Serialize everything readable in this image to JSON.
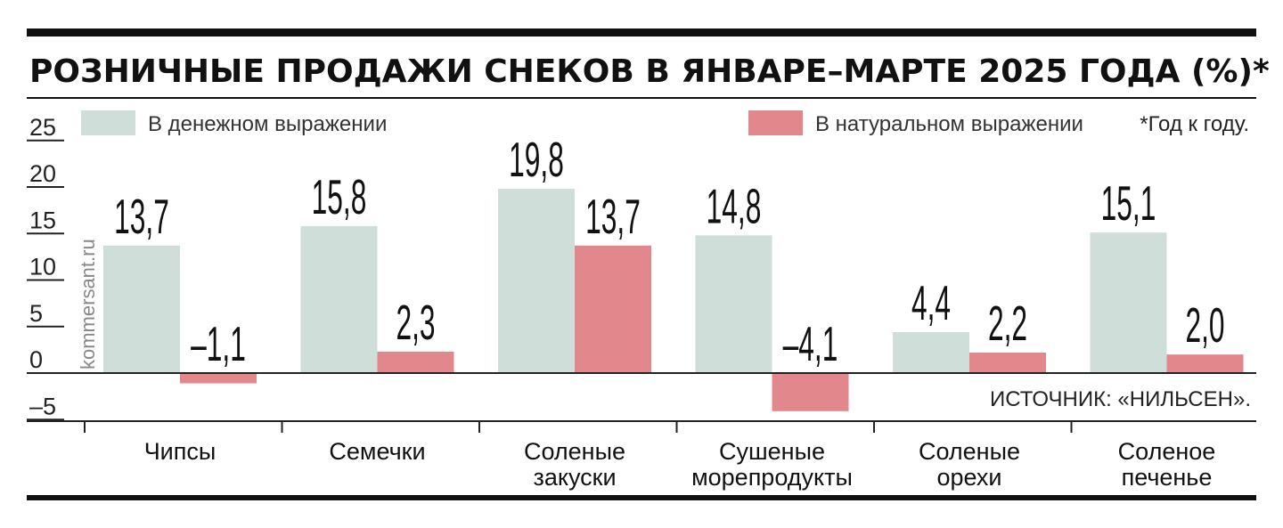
{
  "chart_data": {
    "type": "bar",
    "title": "РОЗНИЧНЫЕ ПРОДАЖИ СНЕКОВ В ЯНВАРЕ–МАРТЕ 2025 ГОДА (%)*",
    "categories": [
      [
        "Чипсы"
      ],
      [
        "Семечки"
      ],
      [
        "Соленые",
        "закуски"
      ],
      [
        "Сушеные",
        "морепродукты"
      ],
      [
        "Соленые",
        "орехи"
      ],
      [
        "Соленое",
        "печенье"
      ]
    ],
    "series": [
      {
        "name": "В денежном выражении",
        "color": "#cfded9",
        "values": [
          13.7,
          15.8,
          19.8,
          14.8,
          4.4,
          15.1
        ],
        "labels": [
          "13,7",
          "15,8",
          "19,8",
          "14,8",
          "4,4",
          "15,1"
        ]
      },
      {
        "name": "В натуральном выражении",
        "color": "#e2888d",
        "values": [
          -1.1,
          2.3,
          13.7,
          -4.1,
          2.2,
          2.0
        ],
        "labels": [
          "–1,1",
          "2,3",
          "13,7",
          "–4,1",
          "2,2",
          "2,0"
        ]
      }
    ],
    "yticks": [
      25,
      20,
      15,
      10,
      5,
      0,
      -5
    ],
    "ytick_labels": [
      "25",
      "20",
      "15",
      "10",
      "5",
      "0",
      "–5"
    ],
    "ylim": [
      -5,
      25
    ],
    "footnote": "*Год к году.",
    "source": "ИСТОЧНИК: «НИЛЬСЕН».",
    "watermark": "kommersant.ru",
    "legend_position": "top",
    "grid": false
  }
}
